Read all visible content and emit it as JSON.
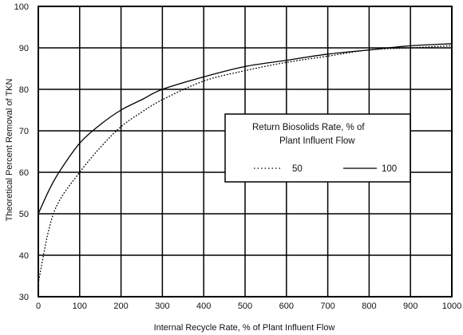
{
  "chart_data": {
    "type": "line",
    "xlabel": "Internal Recycle Rate, % of Plant Influent Flow",
    "ylabel": "Theoretical Percent Removal of TKN",
    "xlim": [
      0,
      1000
    ],
    "ylim": [
      30,
      100
    ],
    "x_ticks": [
      "0",
      "100",
      "200",
      "300",
      "400",
      "500",
      "600",
      "700",
      "800",
      "900",
      "1000"
    ],
    "y_ticks": [
      "30",
      "40",
      "50",
      "60",
      "70",
      "80",
      "90",
      "100"
    ],
    "grid": true,
    "legend": {
      "title_line1": "Return Biosolids Rate, % of",
      "title_line2": "Plant Influent Flow",
      "placement": "center-right"
    },
    "series": [
      {
        "name": "50",
        "style": "dotted",
        "color": "#000000",
        "x": [
          0,
          25,
          50,
          100,
          150,
          200,
          250,
          300,
          400,
          500,
          600,
          700,
          800,
          900,
          1000
        ],
        "y": [
          33.3,
          46,
          53,
          60,
          66,
          71,
          74.5,
          77.5,
          82,
          84.5,
          86.5,
          88,
          89.5,
          90,
          90.5
        ]
      },
      {
        "name": "100",
        "style": "solid",
        "color": "#000000",
        "x": [
          0,
          25,
          50,
          100,
          150,
          200,
          250,
          300,
          400,
          500,
          600,
          700,
          800,
          900,
          1000
        ],
        "y": [
          50,
          55.5,
          60,
          67,
          71.5,
          75,
          77.5,
          80,
          83,
          85.5,
          87,
          88.5,
          89.5,
          90.5,
          91
        ]
      }
    ]
  }
}
